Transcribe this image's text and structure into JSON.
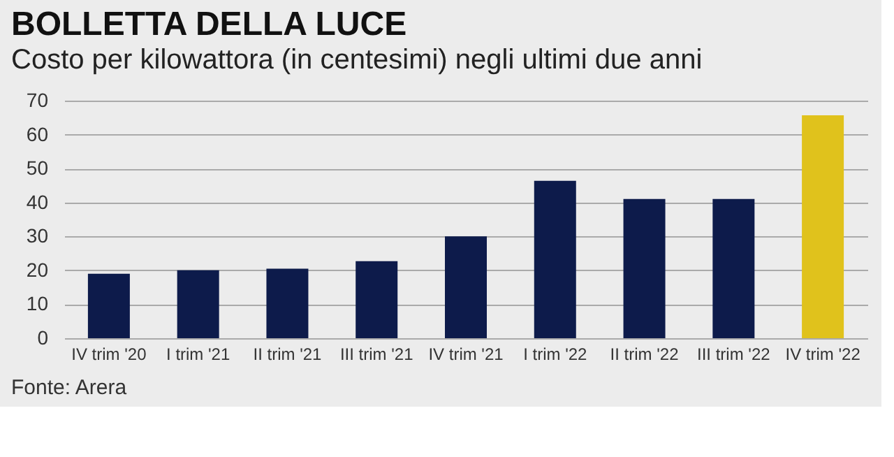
{
  "chart_data": {
    "type": "bar",
    "title": "BOLLETTA DELLA LUCE",
    "subtitle": "Costo per kilowattora (in centesimi) negli ultimi due anni",
    "categories": [
      "IV trim '20",
      "I trim '21",
      "II trim '21",
      "III trim '21",
      "IV trim '21",
      "I trim '22",
      "II trim '22",
      "III trim '22",
      "IV trim '22"
    ],
    "values": [
      19,
      20,
      20.5,
      22.7,
      30,
      46.4,
      41,
      41,
      65.7
    ],
    "colors": [
      "#0d1b4b",
      "#0d1b4b",
      "#0d1b4b",
      "#0d1b4b",
      "#0d1b4b",
      "#0d1b4b",
      "#0d1b4b",
      "#0d1b4b",
      "#e0c21c"
    ],
    "ylim": [
      0,
      70
    ],
    "yticks": [
      0,
      10,
      20,
      30,
      40,
      50,
      60,
      70
    ],
    "grid": "y",
    "annotations": [
      "Fonte: Arera"
    ]
  }
}
